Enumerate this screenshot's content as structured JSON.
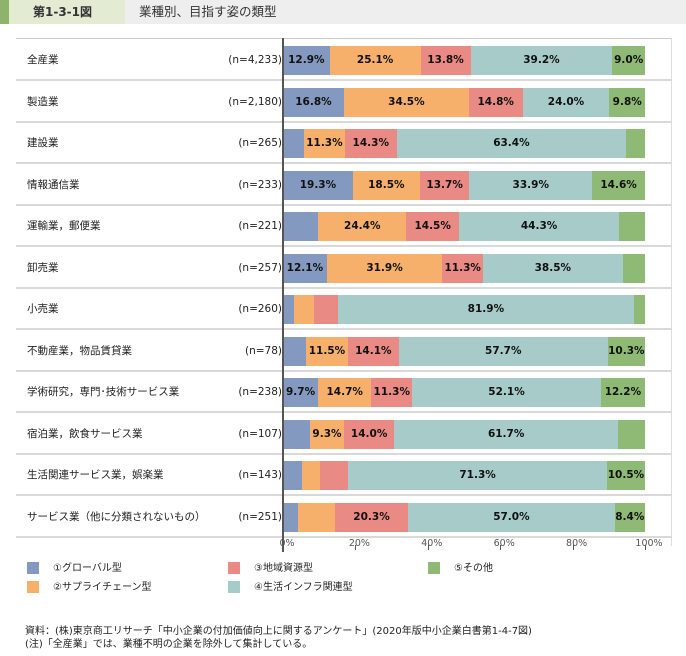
{
  "header": {
    "figure_number": "第1-3-1図",
    "figure_title": "業種別、目指す姿の類型"
  },
  "chart_data": {
    "type": "bar",
    "orientation": "horizontal",
    "stacked": "percent",
    "title": "業種別、目指す姿の類型",
    "xlabel": "",
    "ylabel": "",
    "xlim": [
      0,
      100
    ],
    "x_ticks": [
      "0%",
      "20%",
      "40%",
      "60%",
      "80%",
      "100%"
    ],
    "grid": false,
    "legend_position": "bottom",
    "categories": [
      {
        "label": "全産業",
        "n": "(n=4,233)"
      },
      {
        "label": "製造業",
        "n": "(n=2,180)"
      },
      {
        "label": "建設業",
        "n": "(n=265)"
      },
      {
        "label": "情報通信業",
        "n": "(n=233)"
      },
      {
        "label": "運輸業，郵便業",
        "n": "(n=221)"
      },
      {
        "label": "卸売業",
        "n": "(n=257)"
      },
      {
        "label": "小売業",
        "n": "(n=260)"
      },
      {
        "label": "不動産業，物品賃貸業",
        "n": "(n=78)"
      },
      {
        "label": "学術研究，専門･技術サービス業",
        "n": "(n=238)"
      },
      {
        "label": "宿泊業，飲食サービス業",
        "n": "(n=107)"
      },
      {
        "label": "生活関連サービス業，娯楽業",
        "n": "(n=143)"
      },
      {
        "label": "サービス業（他に分類されないもの）",
        "n": "(n=251)"
      }
    ],
    "series": [
      {
        "name": "①グローバル型",
        "color": "#8499bf",
        "values": [
          12.9,
          16.8,
          5.8,
          19.3,
          9.7,
          12.1,
          3.0,
          6.4,
          9.7,
          7.5,
          5.2,
          4.1
        ],
        "labels": [
          "12.9%",
          "16.8%",
          "",
          "19.3%",
          "",
          "12.1%",
          "",
          "",
          "9.7%",
          "",
          "",
          ""
        ]
      },
      {
        "name": "②サプライチェーン型",
        "color": "#f6b06b",
        "values": [
          25.1,
          34.5,
          11.3,
          18.5,
          24.4,
          31.9,
          5.5,
          11.5,
          14.7,
          9.3,
          4.9,
          10.2
        ],
        "labels": [
          "25.1%",
          "34.5%",
          "11.3%",
          "18.5%",
          "24.4%",
          "31.9%",
          "",
          "11.5%",
          "14.7%",
          "9.3%",
          "",
          ""
        ]
      },
      {
        "name": "③地域資源型",
        "color": "#e98a84",
        "values": [
          13.8,
          14.8,
          14.3,
          13.7,
          14.5,
          11.3,
          6.6,
          14.1,
          11.3,
          14.0,
          7.9,
          20.3
        ],
        "labels": [
          "13.8%",
          "14.8%",
          "14.3%",
          "13.7%",
          "14.5%",
          "11.3%",
          "",
          "14.1%",
          "11.3%",
          "14.0%",
          "",
          "20.3%"
        ]
      },
      {
        "name": "④生活インフラ関連型",
        "color": "#a6cbc8",
        "values": [
          39.2,
          24.0,
          63.4,
          33.9,
          44.3,
          38.5,
          81.9,
          57.7,
          52.1,
          61.7,
          71.3,
          57.0
        ],
        "labels": [
          "39.2%",
          "24.0%",
          "63.4%",
          "33.9%",
          "44.3%",
          "38.5%",
          "81.9%",
          "57.7%",
          "52.1%",
          "61.7%",
          "71.3%",
          "57.0%"
        ]
      },
      {
        "name": "⑤その他",
        "color": "#8fba75",
        "values": [
          9.0,
          9.8,
          5.2,
          14.6,
          7.1,
          6.2,
          3.0,
          10.3,
          12.2,
          7.5,
          10.5,
          8.4
        ],
        "labels": [
          "9.0%",
          "9.8%",
          "",
          "14.6%",
          "",
          "",
          "",
          "10.3%",
          "12.2%",
          "",
          "10.5%",
          "8.4%"
        ]
      }
    ]
  },
  "notes": {
    "source": "資料：(株)東京商工リサーチ「中小企業の付加価値向上に関するアンケート」(2020年版中小企業白書第1-4-7図)",
    "note": "(注)「全産業」では、業種不明の企業を除外して集計している。"
  }
}
